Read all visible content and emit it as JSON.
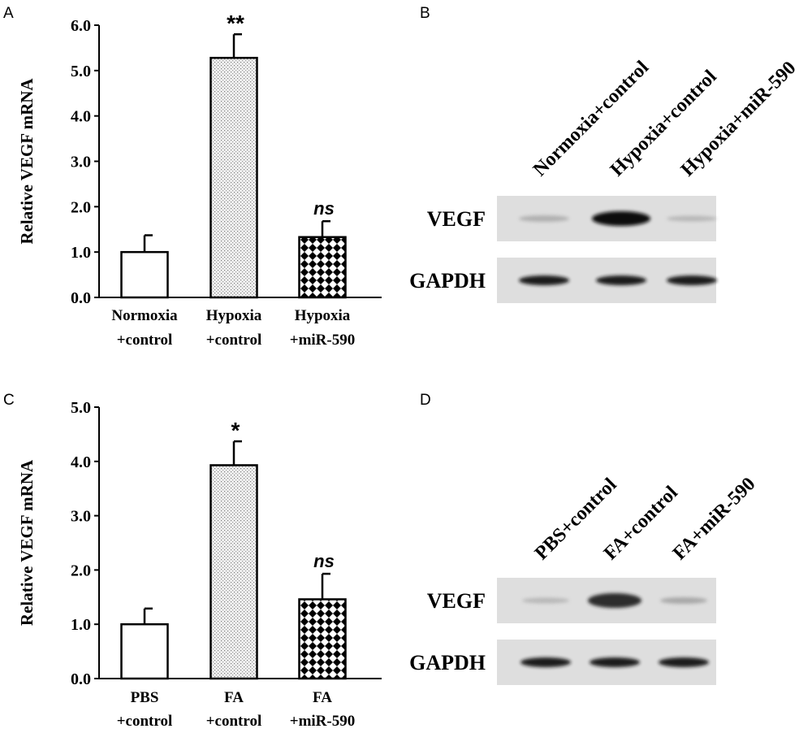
{
  "panels": {
    "A": "A",
    "B": "B",
    "C": "C",
    "D": "D"
  },
  "chart_data": [
    {
      "panel": "A",
      "type": "bar",
      "ylabel": "Relative VEGF mRNA",
      "ylim": [
        0,
        6
      ],
      "yticks": [
        "0.0",
        "1.0",
        "2.0",
        "3.0",
        "4.0",
        "5.0",
        "6.0"
      ],
      "categories": [
        [
          "Normoxia",
          "+control"
        ],
        [
          "Hypoxia",
          "+control"
        ],
        [
          "Hypoxia",
          "+miR-590"
        ]
      ],
      "values": [
        1.0,
        5.28,
        1.33
      ],
      "errors": [
        0.37,
        0.52,
        0.35
      ],
      "fills": [
        "white",
        "dots",
        "checker"
      ],
      "annotations": [
        "",
        "**",
        "ns"
      ]
    },
    {
      "panel": "C",
      "type": "bar",
      "ylabel": "Relative VEGF mRNA",
      "ylim": [
        0,
        5
      ],
      "yticks": [
        "0.0",
        "1.0",
        "2.0",
        "3.0",
        "4.0",
        "5.0"
      ],
      "categories": [
        [
          "PBS",
          "+control"
        ],
        [
          "FA",
          "+control"
        ],
        [
          "FA",
          "+miR-590"
        ]
      ],
      "values": [
        1.0,
        3.93,
        1.46
      ],
      "errors": [
        0.29,
        0.44,
        0.47
      ],
      "fills": [
        "white",
        "dots",
        "checker"
      ],
      "annotations": [
        "",
        "*",
        "ns"
      ]
    }
  ],
  "blots": [
    {
      "panel": "B",
      "lanes": [
        "Normoxia+control",
        "Hypoxia+control",
        "Hypoxia+miR-590"
      ],
      "rows": [
        {
          "label": "VEGF",
          "intensities": [
            0.3,
            1.0,
            0.25
          ]
        },
        {
          "label": "GAPDH",
          "intensities": [
            0.95,
            0.95,
            0.95
          ]
        }
      ]
    },
    {
      "panel": "D",
      "lanes": [
        "PBS+control",
        "FA+control",
        "FA+miR-590"
      ],
      "rows": [
        {
          "label": "VEGF",
          "intensities": [
            0.25,
            0.9,
            0.35
          ]
        },
        {
          "label": "GAPDH",
          "intensities": [
            0.95,
            0.95,
            0.95
          ]
        }
      ]
    }
  ]
}
